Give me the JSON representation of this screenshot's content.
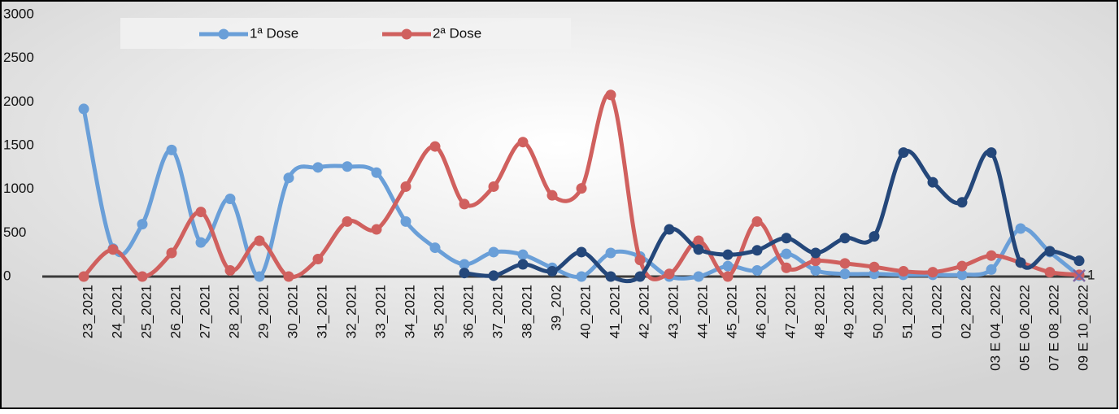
{
  "chart_data": {
    "type": "line",
    "categories": [
      "23_2021",
      "24_2021",
      "25_2021",
      "26_2021",
      "27_2021",
      "28_2021",
      "29_2021",
      "30_2021",
      "31_2021",
      "32_2021",
      "33_2021",
      "34_2021",
      "35_2021",
      "36_2021",
      "37_2021",
      "38_2021",
      "39_202",
      "40_2021",
      "41_2021",
      "42_2021",
      "43_2021",
      "44_2021",
      "45_2021",
      "46_2021",
      "47_2021",
      "48_2021",
      "49_2021",
      "50_2021",
      "51_2021",
      "01_2022",
      "02_2022",
      "03 E 04_2022",
      "05 E 06_2022",
      "07 E 08_2022",
      "09 E 10_2022"
    ],
    "series": [
      {
        "name": "1ª Dose",
        "color": "#6a9fd8",
        "values": [
          1920,
          320,
          600,
          1450,
          390,
          890,
          0,
          1130,
          1250,
          1260,
          1190,
          630,
          330,
          140,
          280,
          250,
          100,
          0,
          270,
          230,
          0,
          0,
          120,
          70,
          260,
          70,
          30,
          30,
          20,
          20,
          20,
          80,
          550,
          280,
          10
        ]
      },
      {
        "name": "2ª Dose",
        "color": "#d0605e",
        "values": [
          0,
          310,
          0,
          270,
          740,
          70,
          410,
          0,
          200,
          630,
          540,
          1030,
          1490,
          830,
          1030,
          1540,
          930,
          1010,
          2080,
          190,
          30,
          410,
          0,
          630,
          100,
          180,
          150,
          110,
          60,
          50,
          120,
          240,
          160,
          50,
          20
        ]
      },
      {
        "color": "#24477a",
        "values": [
          null,
          null,
          null,
          null,
          null,
          null,
          null,
          null,
          null,
          null,
          null,
          null,
          null,
          40,
          10,
          140,
          60,
          280,
          0,
          0,
          540,
          310,
          250,
          300,
          440,
          270,
          440,
          460,
          1420,
          1080,
          850,
          1420,
          160,
          290,
          180
        ]
      }
    ],
    "annotation": "1",
    "ylim": [
      0,
      3000
    ],
    "yticks": [
      0,
      500,
      1000,
      1500,
      2000,
      2500,
      3000
    ],
    "grid": false,
    "legend": "top"
  }
}
